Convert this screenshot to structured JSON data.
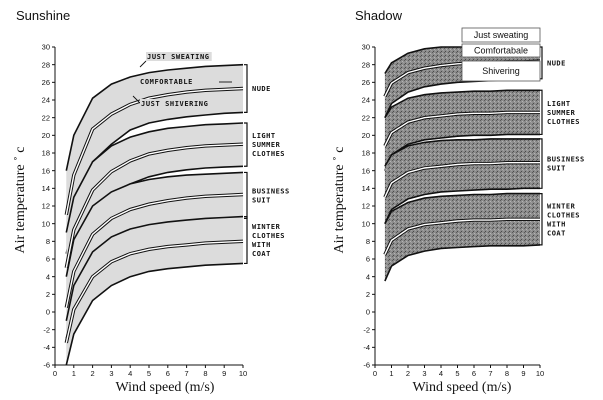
{
  "chart_data": [
    {
      "type": "area",
      "title": "Sunshine",
      "xlabel": "Wind speed   (m/s)",
      "ylabel": "Air temperature  ˚ c",
      "xlim": [
        0,
        10
      ],
      "ylim": [
        -6,
        30
      ],
      "x_ticks": [
        0,
        1,
        2,
        3,
        4,
        5,
        6,
        7,
        8,
        9,
        10
      ],
      "y_ticks": [
        -6,
        -4,
        -2,
        0,
        2,
        4,
        6,
        8,
        10,
        12,
        14,
        16,
        18,
        20,
        22,
        24,
        26,
        28,
        30
      ],
      "fill": "light-gray",
      "bands": [
        {
          "name": "NUDE",
          "label_lines": [
            "NUDE"
          ],
          "x": [
            0.6,
            1,
            2,
            3,
            4,
            5,
            6,
            7,
            8,
            9,
            10
          ],
          "upper": [
            16.0,
            20.0,
            24.2,
            25.8,
            26.6,
            27.1,
            27.4,
            27.6,
            27.8,
            27.9,
            28.0
          ],
          "lower": [
            6.6,
            11.0,
            17.0,
            19.0,
            20.6,
            21.4,
            21.8,
            22.1,
            22.3,
            22.5,
            22.6
          ],
          "inner_lines": [
            {
              "name": "COMFORTABLE",
              "y": [
                11.0,
                15.5,
                20.7,
                22.4,
                23.5,
                24.2,
                24.6,
                24.9,
                25.1,
                25.2,
                25.3
              ]
            }
          ],
          "annotations": [
            "JUST SWEATING",
            "COMFORTABLE",
            "JUST SHIVERING"
          ]
        },
        {
          "name": "LIGHT SUMMER CLOTHES",
          "label_lines": [
            "LIGHT",
            "SUMMER",
            "CLOTHES"
          ],
          "x": [
            0.6,
            1,
            2,
            3,
            4,
            5,
            6,
            7,
            8,
            9,
            10
          ],
          "upper": [
            9.0,
            13.0,
            17.0,
            18.8,
            19.8,
            20.4,
            20.8,
            21.0,
            21.2,
            21.3,
            21.4
          ],
          "lower": [
            0.8,
            5.5,
            10.5,
            13.0,
            14.5,
            15.3,
            15.8,
            16.1,
            16.3,
            16.4,
            16.5
          ],
          "inner_lines": [
            {
              "name": "comfortable",
              "y": [
                5.0,
                9.3,
                13.8,
                15.9,
                17.1,
                17.9,
                18.3,
                18.6,
                18.8,
                18.9,
                19.0
              ]
            }
          ]
        },
        {
          "name": "BUSINESS SUIT",
          "label_lines": [
            "BUSINESS",
            "SUIT"
          ],
          "x": [
            0.6,
            1,
            2,
            3,
            4,
            5,
            6,
            7,
            8,
            9,
            10
          ],
          "upper": [
            4.0,
            8.2,
            12.0,
            13.6,
            14.5,
            15.0,
            15.3,
            15.5,
            15.6,
            15.7,
            15.8
          ],
          "lower": [
            -3.0,
            1.0,
            5.5,
            7.6,
            8.8,
            9.5,
            9.9,
            10.2,
            10.4,
            10.5,
            10.6
          ],
          "inner_lines": [
            {
              "name": "comfortable",
              "y": [
                0.5,
                4.6,
                8.8,
                10.6,
                11.6,
                12.2,
                12.6,
                12.9,
                13.1,
                13.2,
                13.3
              ]
            }
          ]
        },
        {
          "name": "WINTER CLOTHES WITH COAT",
          "label_lines": [
            "WINTER",
            "CLOTHES",
            "WITH",
            "COAT"
          ],
          "x": [
            0.6,
            1,
            2,
            3,
            4,
            5,
            6,
            7,
            8,
            9,
            10
          ],
          "upper": [
            -1.0,
            3.0,
            6.8,
            8.5,
            9.4,
            9.9,
            10.2,
            10.4,
            10.6,
            10.7,
            10.8
          ],
          "lower": [
            -6.0,
            -2.5,
            1.3,
            3.0,
            4.0,
            4.6,
            4.9,
            5.1,
            5.3,
            5.4,
            5.5
          ],
          "inner_lines": [
            {
              "name": "comfortable",
              "y": [
                -3.5,
                0.3,
                4.0,
                5.7,
                6.6,
                7.1,
                7.4,
                7.6,
                7.8,
                7.9,
                8.0
              ]
            }
          ]
        }
      ]
    },
    {
      "type": "area",
      "title": "Shadow",
      "xlabel": "Wind speed   (m/s)",
      "ylabel": "Air temperature  ˚ c",
      "xlim": [
        0,
        10
      ],
      "ylim": [
        -6,
        30
      ],
      "x_ticks": [
        0,
        1,
        2,
        3,
        4,
        5,
        6,
        7,
        8,
        9,
        10
      ],
      "y_ticks": [
        -6,
        -4,
        -2,
        0,
        2,
        4,
        6,
        8,
        10,
        12,
        14,
        16,
        18,
        20,
        22,
        24,
        26,
        28,
        30
      ],
      "fill": "dark-stippled-gray",
      "legend_boxes": [
        "Just sweating",
        "Comfortabale",
        "Shivering"
      ],
      "bands": [
        {
          "name": "NUDE",
          "label_lines": [
            "NUDE"
          ],
          "x": [
            0.6,
            1,
            2,
            3,
            4,
            5,
            6,
            7,
            8,
            9,
            10
          ],
          "upper": [
            27.0,
            28.2,
            29.3,
            29.8,
            30.0,
            30.0,
            30.0,
            30.0,
            30.0,
            30.0,
            30.0
          ],
          "lower": [
            22.0,
            23.6,
            24.9,
            25.5,
            25.8,
            26.0,
            26.1,
            26.2,
            26.3,
            26.3,
            26.4
          ],
          "inner_lines": [
            {
              "name": "comfortable",
              "y": [
                24.4,
                25.9,
                27.1,
                27.6,
                27.9,
                28.1,
                28.2,
                28.2,
                28.3,
                28.3,
                28.4
              ]
            }
          ]
        },
        {
          "name": "LIGHT SUMMER CLOTHES",
          "label_lines": [
            "LIGHT",
            "SUMMER",
            "CLOTHES"
          ],
          "x": [
            0.6,
            1,
            2,
            3,
            4,
            5,
            6,
            7,
            8,
            9,
            10
          ],
          "upper": [
            22.0,
            23.2,
            24.2,
            24.6,
            24.8,
            24.9,
            25.0,
            25.0,
            25.1,
            25.1,
            25.1
          ],
          "lower": [
            16.0,
            17.8,
            19.0,
            19.5,
            19.7,
            19.9,
            20.0,
            20.0,
            20.1,
            20.1,
            20.1
          ],
          "inner_lines": [
            {
              "name": "comfortable",
              "y": [
                18.8,
                20.3,
                21.5,
                22.0,
                22.2,
                22.4,
                22.5,
                22.5,
                22.6,
                22.6,
                22.6
              ]
            }
          ]
        },
        {
          "name": "BUSINESS SUIT",
          "label_lines": [
            "BUSINESS",
            "SUIT"
          ],
          "x": [
            0.6,
            1,
            2,
            3,
            4,
            5,
            6,
            7,
            8,
            9,
            10
          ],
          "upper": [
            16.5,
            17.8,
            18.8,
            19.2,
            19.4,
            19.5,
            19.5,
            19.6,
            19.6,
            19.6,
            19.6
          ],
          "lower": [
            10.0,
            11.6,
            12.8,
            13.3,
            13.6,
            13.7,
            13.8,
            13.9,
            13.9,
            14.0,
            14.0
          ],
          "inner_lines": [
            {
              "name": "comfortable",
              "y": [
                13.0,
                14.6,
                15.8,
                16.3,
                16.5,
                16.7,
                16.8,
                16.8,
                16.9,
                16.9,
                16.9
              ]
            }
          ]
        },
        {
          "name": "WINTER CLOTHES WITH COAT",
          "label_lines": [
            "WINTER",
            "CLOTHES",
            "WITH",
            "COAT"
          ],
          "x": [
            0.6,
            1,
            2,
            3,
            4,
            5,
            6,
            7,
            8,
            9,
            10
          ],
          "upper": [
            10.0,
            11.4,
            12.4,
            12.9,
            13.1,
            13.2,
            13.3,
            13.3,
            13.4,
            13.4,
            13.4
          ],
          "lower": [
            3.5,
            5.2,
            6.4,
            6.9,
            7.2,
            7.3,
            7.4,
            7.5,
            7.5,
            7.5,
            7.6
          ],
          "inner_lines": [
            {
              "name": "comfortable",
              "y": [
                6.5,
                8.1,
                9.4,
                9.9,
                10.1,
                10.3,
                10.4,
                10.4,
                10.5,
                10.5,
                10.5
              ]
            }
          ]
        }
      ]
    }
  ]
}
